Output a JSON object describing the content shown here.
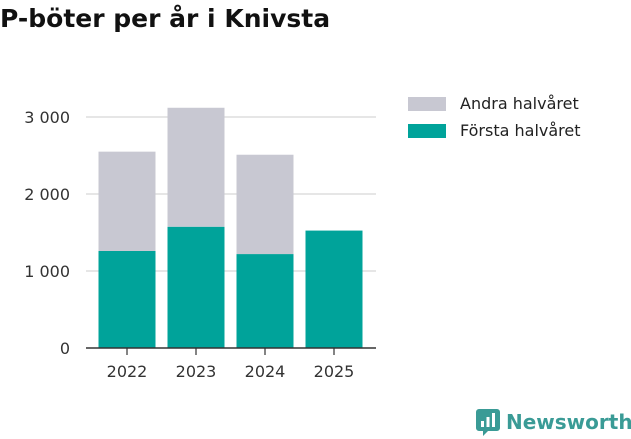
{
  "title": "P-böter per år i Knivsta",
  "brand": "Newsworthy",
  "colors": {
    "andra": "#c8c8d2",
    "forsta": "#00a39a",
    "grid": "#dddddd",
    "axis": "#333333",
    "brand": "#3a9b96"
  },
  "legend": [
    {
      "label": "Andra halvåret",
      "color": "#c8c8d2"
    },
    {
      "label": "Första halvåret",
      "color": "#00a39a"
    }
  ],
  "chart_data": {
    "type": "bar",
    "stacked": true,
    "categories": [
      "2022",
      "2023",
      "2024",
      "2025"
    ],
    "series": [
      {
        "name": "Första halvåret",
        "values": [
          1260,
          1575,
          1220,
          1525
        ]
      },
      {
        "name": "Andra halvåret",
        "values": [
          1290,
          1545,
          1290,
          0
        ]
      }
    ],
    "yticks": [
      0,
      1000,
      2000,
      3000
    ],
    "ytick_labels": [
      "0",
      "1 000",
      "2 000",
      "3 000"
    ],
    "ylim": [
      0,
      3000
    ],
    "grid": true,
    "legend_position": "top-right"
  }
}
